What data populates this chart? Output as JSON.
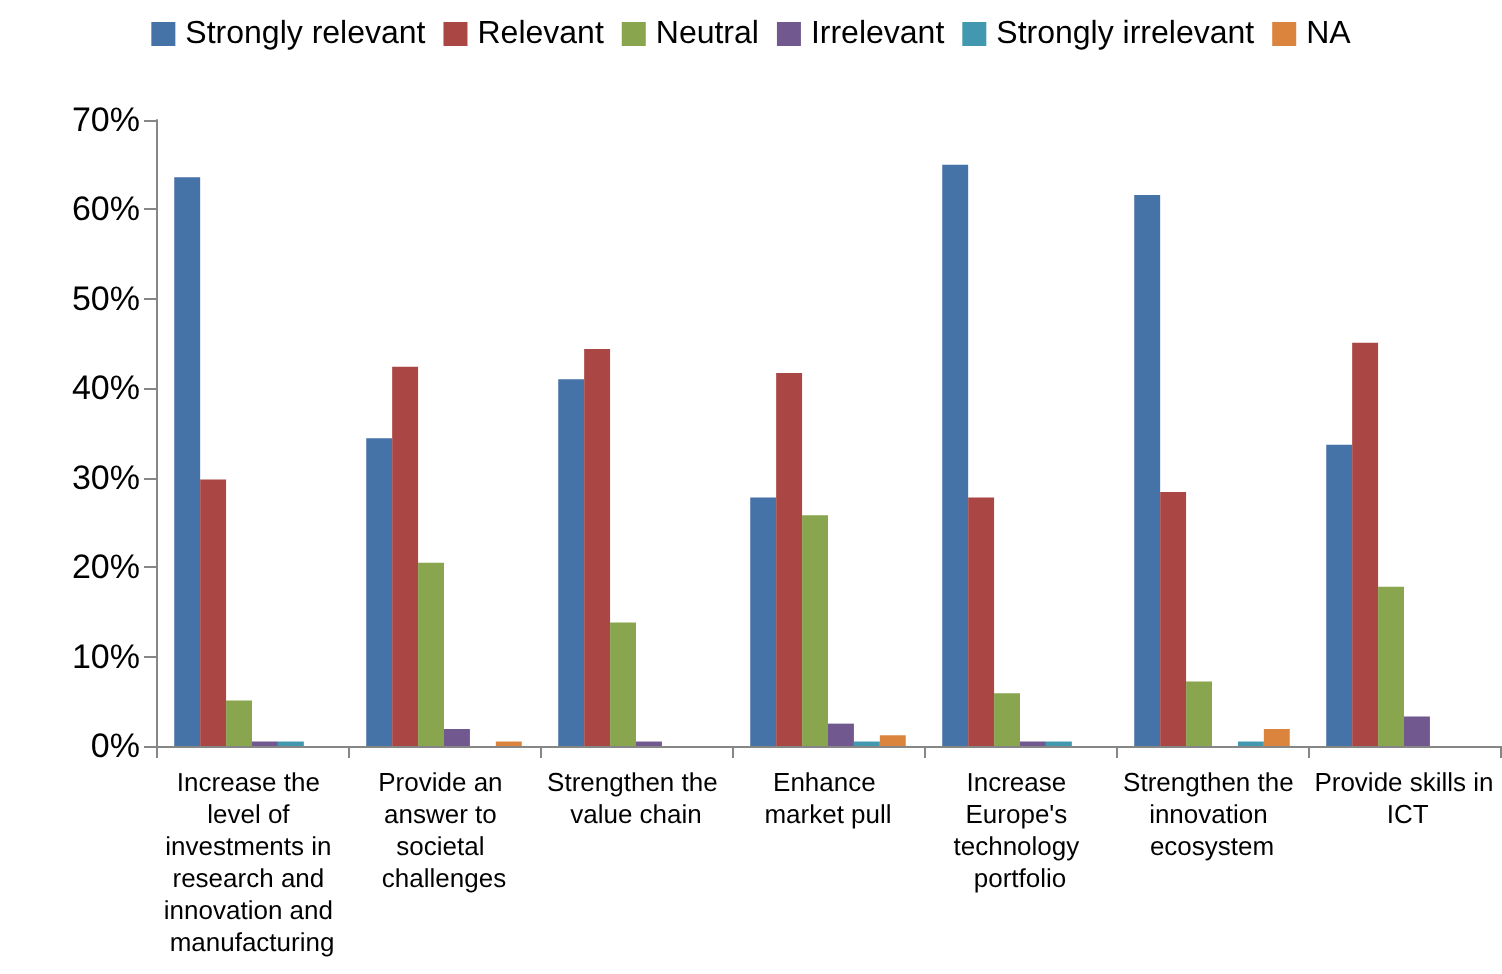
{
  "chart_data": {
    "type": "bar",
    "categories": [
      "Increase the level of investments in research and innovation and manufacturing",
      "Provide an answer to societal challenges",
      "Strengthen the value chain",
      "Enhance market pull",
      "Increase Europe's technology portfolio",
      "Strengthen the innovation ecosystem",
      "Provide skills in ICT"
    ],
    "series": [
      {
        "name": "Strongly relevant",
        "color": "#4572a7",
        "values": [
          63.6,
          34.4,
          41.0,
          27.8,
          65.0,
          61.6,
          33.7
        ]
      },
      {
        "name": "Relevant",
        "color": "#aa4643",
        "values": [
          29.8,
          42.4,
          44.4,
          41.7,
          27.8,
          28.4,
          45.1
        ]
      },
      {
        "name": "Neutral",
        "color": "#89a54e",
        "values": [
          5.1,
          20.5,
          13.8,
          25.8,
          5.9,
          7.2,
          17.8
        ]
      },
      {
        "name": "Irrelevant",
        "color": "#71588f",
        "values": [
          0.5,
          1.9,
          0.5,
          2.5,
          0.5,
          0,
          3.3
        ]
      },
      {
        "name": "Strongly irrelevant",
        "color": "#4198af",
        "values": [
          0.5,
          0,
          0,
          0.5,
          0.5,
          0.5,
          0
        ]
      },
      {
        "name": "NA",
        "color": "#db843d",
        "values": [
          0,
          0.5,
          0,
          1.2,
          0,
          1.9,
          0
        ]
      }
    ],
    "ylim": [
      0,
      70
    ],
    "yticks": [
      {
        "value": 0,
        "label": "0%"
      },
      {
        "value": 10,
        "label": "10%"
      },
      {
        "value": 20,
        "label": "20%"
      },
      {
        "value": 30,
        "label": "30%"
      },
      {
        "value": 40,
        "label": "40%"
      },
      {
        "value": 50,
        "label": "50%"
      },
      {
        "value": 60,
        "label": "60%"
      },
      {
        "value": 70,
        "label": "70%"
      }
    ],
    "legend": "top"
  }
}
